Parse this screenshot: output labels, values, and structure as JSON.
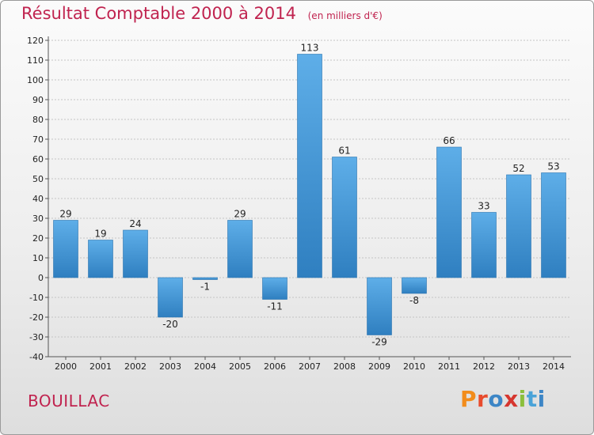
{
  "header": {
    "title": "Résultat Comptable 2000 à 2014",
    "subtitle": "(en milliers d'€)"
  },
  "footer": {
    "commune": "BOUILLAC",
    "logo": [
      "P",
      "r",
      "o",
      "x",
      "i",
      "t",
      "i"
    ]
  },
  "colors": {
    "title": "#c0234f",
    "bar_light": "#5eaee8",
    "bar_dark": "#2f7fc0"
  },
  "chart_data": {
    "type": "bar",
    "title": "Résultat Comptable 2000 à 2014 (en milliers d'€)",
    "xlabel": "",
    "ylabel": "",
    "categories": [
      "2000",
      "2001",
      "2002",
      "2003",
      "2004",
      "2005",
      "2006",
      "2007",
      "2008",
      "2009",
      "2010",
      "2011",
      "2012",
      "2013",
      "2014"
    ],
    "values": [
      29,
      19,
      24,
      -20,
      -1,
      29,
      -11,
      113,
      61,
      -29,
      -8,
      66,
      33,
      52,
      53
    ],
    "data_labels": [
      "29",
      "19",
      "24",
      "-20",
      "-1",
      "29",
      "-11",
      "113",
      "61",
      "-29",
      "-8",
      "66",
      "33",
      "52",
      "53"
    ],
    "ylim": [
      -40,
      120
    ],
    "yticks": [
      -40,
      -30,
      -20,
      -10,
      0,
      10,
      20,
      30,
      40,
      50,
      60,
      70,
      80,
      90,
      100,
      110,
      120
    ],
    "grid": "horizontal",
    "legend": "none"
  }
}
